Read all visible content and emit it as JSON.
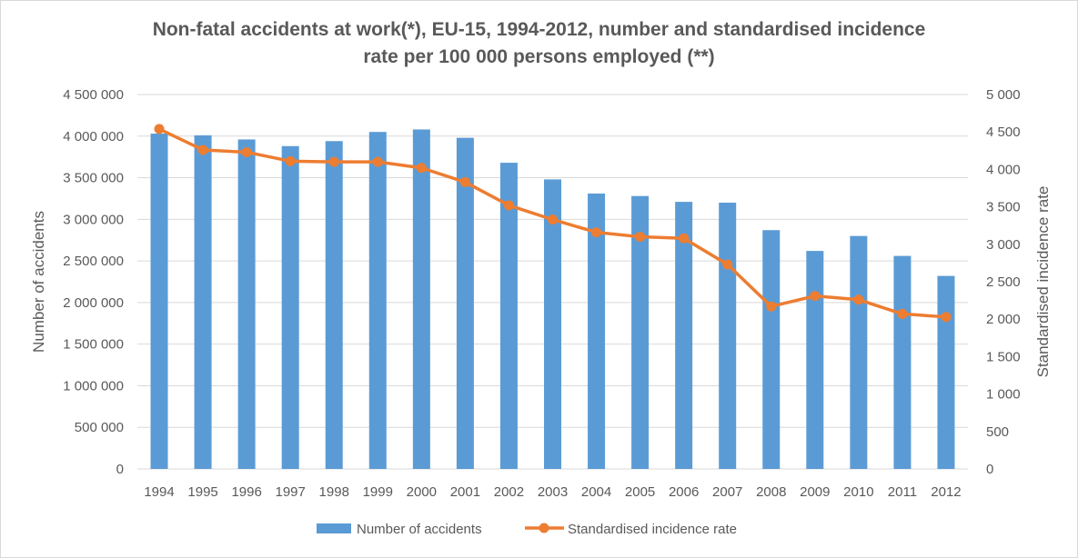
{
  "chart_data": {
    "type": "bar+line",
    "title_line1": "Non-fatal accidents at work(*), EU-15, 1994-2012, number and standardised incidence",
    "title_line2": "rate per 100 000 persons employed (**)",
    "xlabel": "",
    "ylabel": "Number of accidents",
    "y2label": "Standardised incidence rate",
    "categories": [
      "1994",
      "1995",
      "1996",
      "1997",
      "1998",
      "1999",
      "2000",
      "2001",
      "2002",
      "2003",
      "2004",
      "2005",
      "2006",
      "2007",
      "2008",
      "2009",
      "2010",
      "2011",
      "2012"
    ],
    "ylim": [
      0,
      4500000
    ],
    "y2lim": [
      0,
      5000
    ],
    "yticks": [
      0,
      500000,
      1000000,
      1500000,
      2000000,
      2500000,
      3000000,
      3500000,
      4000000,
      4500000
    ],
    "ytick_labels": [
      "0",
      "500 000",
      "1 000 000",
      "1 500 000",
      "2 000 000",
      "2 500 000",
      "3 000 000",
      "3 500 000",
      "4 000 000",
      "4 500 000"
    ],
    "y2ticks": [
      0,
      500,
      1000,
      1500,
      2000,
      2500,
      3000,
      3500,
      4000,
      4500,
      5000
    ],
    "y2tick_labels": [
      "0",
      "500",
      "1 000",
      "1 500",
      "2 000",
      "2 500",
      "3 000",
      "3 500",
      "4 000",
      "4 500",
      "5 000"
    ],
    "grid": true,
    "legend_position": "bottom",
    "series": [
      {
        "name": "Number of accidents",
        "type": "bar",
        "axis": "left",
        "color": "#5b9bd5",
        "values": [
          4030000,
          4010000,
          3960000,
          3880000,
          3940000,
          4050000,
          4080000,
          3980000,
          3680000,
          3480000,
          3310000,
          3280000,
          3210000,
          3200000,
          2870000,
          2620000,
          2800000,
          2560000,
          2320000
        ]
      },
      {
        "name": "Standardised incidence rate",
        "type": "line",
        "axis": "right",
        "color": "#ed7d31",
        "values": [
          4540,
          4260,
          4230,
          4110,
          4100,
          4100,
          4020,
          3830,
          3520,
          3330,
          3160,
          3100,
          3080,
          2730,
          2170,
          2310,
          2260,
          2070,
          2030
        ]
      }
    ]
  }
}
